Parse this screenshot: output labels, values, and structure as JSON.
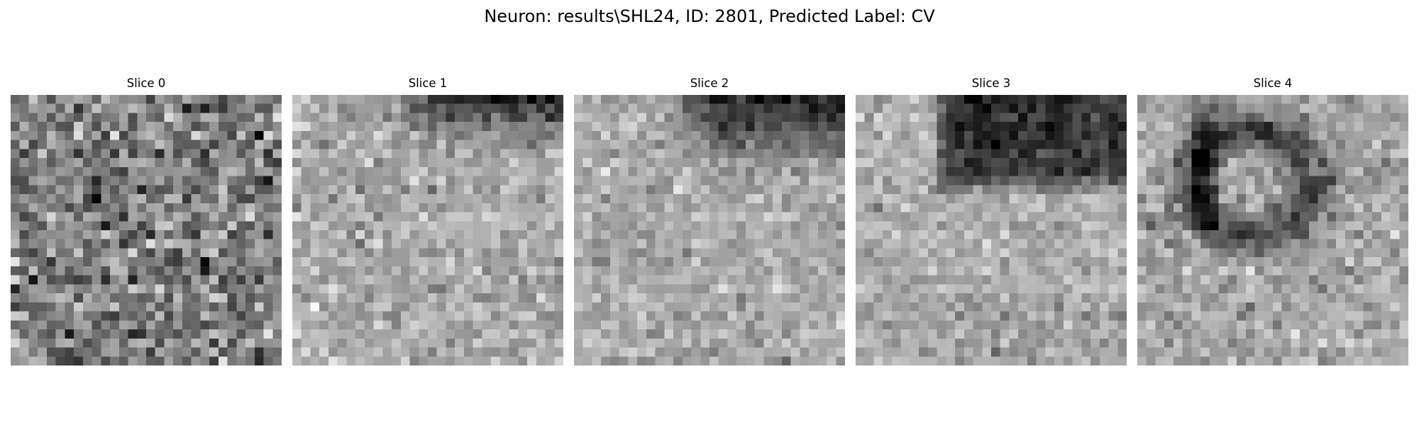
{
  "figure": {
    "suptitle": "Neuron: results\\SHL24, ID: 2801, Predicted Label: CV"
  },
  "slices": [
    {
      "title": "Slice 0",
      "pattern": "uniform-noise-dark"
    },
    {
      "title": "Slice 1",
      "pattern": "light-noise-dark-band-top-right"
    },
    {
      "title": "Slice 2",
      "pattern": "light-noise-dark-band-top-right-wider"
    },
    {
      "title": "Slice 3",
      "pattern": "dark-cell-body-upper-center"
    },
    {
      "title": "Slice 4",
      "pattern": "dark-ring-upper-left-center"
    }
  ],
  "colormap": "gray"
}
